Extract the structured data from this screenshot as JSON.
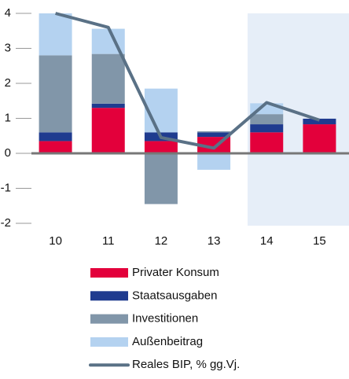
{
  "chart_data": {
    "type": "bar",
    "categories": [
      "10",
      "11",
      "12",
      "13",
      "14",
      "15"
    ],
    "series": [
      {
        "name": "Privater Konsum",
        "color": "#e3003b",
        "values": [
          0.35,
          1.3,
          0.35,
          0.47,
          0.6,
          0.83
        ]
      },
      {
        "name": "Staatsausgaben",
        "color": "#1f3b8f",
        "values": [
          0.25,
          0.12,
          0.25,
          0.13,
          0.23,
          0.16
        ]
      },
      {
        "name": "Investitionen",
        "color": "#8196a9",
        "values": [
          2.2,
          1.42,
          -1.45,
          0.03,
          0.29,
          0
        ]
      },
      {
        "name": "Außenbeitrag",
        "color": "#b4d2f0",
        "values": [
          1.2,
          0.72,
          1.25,
          -0.47,
          0.31,
          0
        ]
      },
      {
        "name": "Reales BIP, % gg.Vj.",
        "type": "line",
        "color": "#5a7186",
        "values": [
          4.0,
          3.6,
          0.45,
          0.15,
          1.45,
          0.95
        ]
      }
    ],
    "ylim": [
      -2,
      4
    ],
    "yticks": [
      -2,
      -1,
      0,
      1,
      2,
      3,
      4
    ],
    "grid": false
  }
}
